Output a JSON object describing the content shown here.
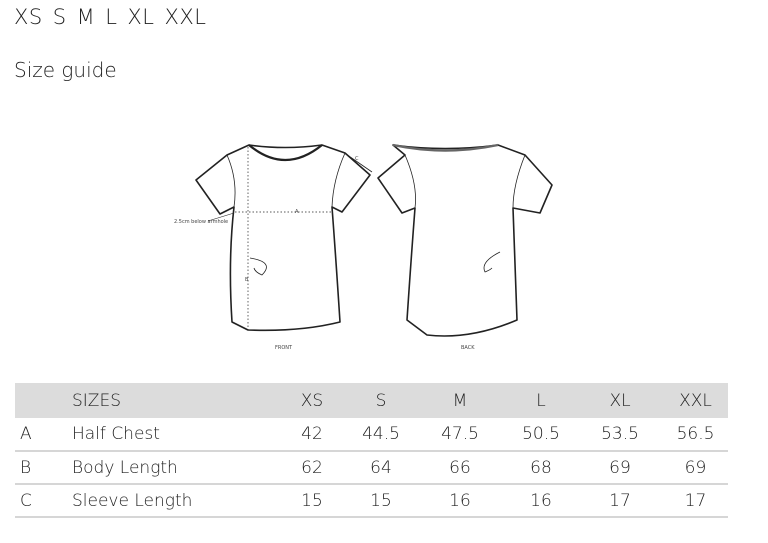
{
  "sizes_line": [
    "XS",
    "S",
    "M",
    "L",
    "XL",
    "XXL"
  ],
  "title": "Size guide",
  "illustration": {
    "front_label": "FRONT",
    "back_label": "BACK",
    "note": "2.5cm below armhole",
    "marker_a": "A",
    "marker_b": "B",
    "marker_c": "C"
  },
  "table": {
    "header": [
      "SIZES",
      "XS",
      "S",
      "M",
      "L",
      "XL",
      "XXL"
    ],
    "rows": [
      {
        "letter": "A",
        "name": "Half Chest",
        "values": [
          "42",
          "44.5",
          "47.5",
          "50.5",
          "53.5",
          "56.5"
        ]
      },
      {
        "letter": "B",
        "name": "Body Length",
        "values": [
          "62",
          "64",
          "66",
          "68",
          "69",
          "69"
        ]
      },
      {
        "letter": "C",
        "name": "Sleeve Length",
        "values": [
          "15",
          "15",
          "16",
          "16",
          "17",
          "17"
        ]
      }
    ]
  }
}
